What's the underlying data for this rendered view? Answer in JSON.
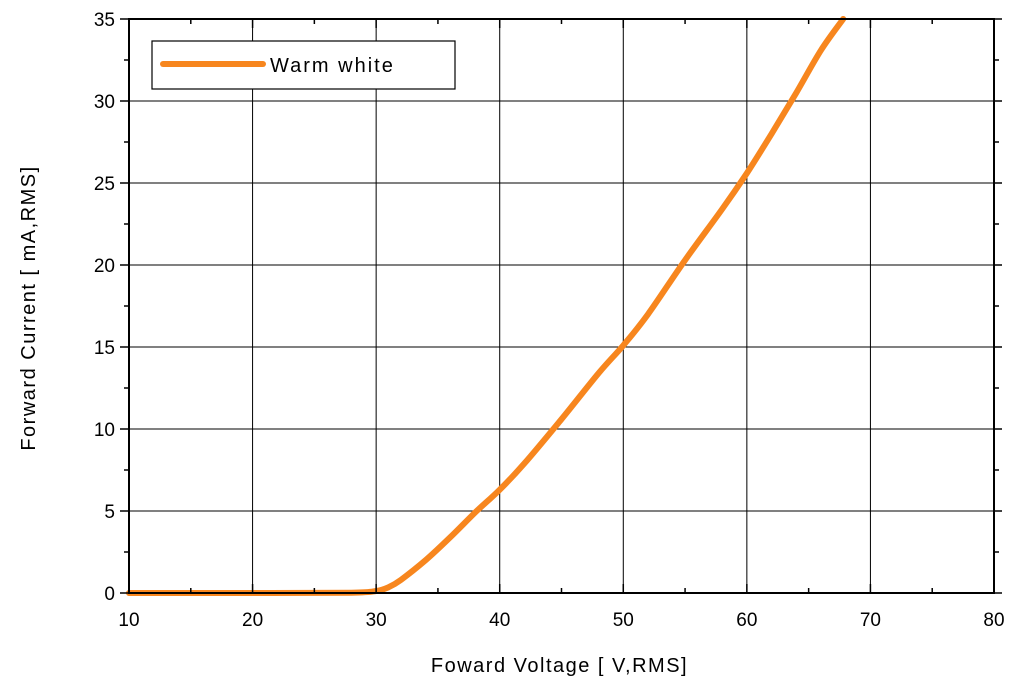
{
  "chart_data": {
    "type": "line",
    "xlabel": "Foward Voltage [ V,RMS]",
    "ylabel": "Forward Current [ mA,RMS]",
    "xlim": [
      10,
      80
    ],
    "ylim": [
      0,
      35
    ],
    "x_ticks": [
      10,
      20,
      30,
      40,
      50,
      60,
      70,
      80
    ],
    "y_ticks": [
      0,
      5,
      10,
      15,
      20,
      25,
      30,
      35
    ],
    "grid": true,
    "legend_position": "top-left",
    "series": [
      {
        "name": "Warm white",
        "color": "#f7861e",
        "x": [
          10,
          20,
          28,
          30,
          31,
          32,
          34,
          36,
          38,
          40,
          42,
          45,
          48,
          50,
          52,
          55,
          58,
          60,
          62,
          64,
          66,
          67.8
        ],
        "y": [
          0,
          0,
          0.02,
          0.12,
          0.35,
          0.8,
          2.0,
          3.4,
          4.9,
          6.3,
          7.9,
          10.6,
          13.4,
          15.1,
          17.0,
          20.3,
          23.4,
          25.6,
          28.0,
          30.5,
          33.1,
          35.0
        ]
      }
    ]
  }
}
